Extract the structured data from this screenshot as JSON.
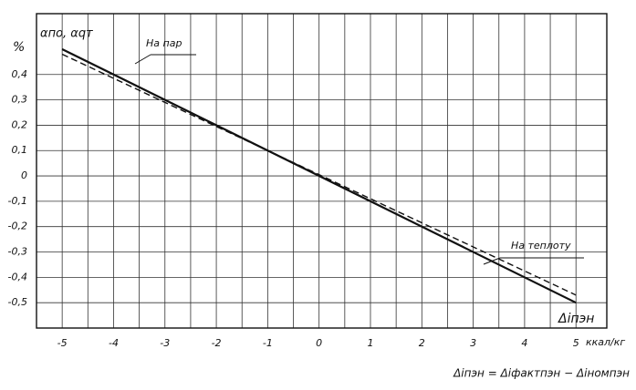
{
  "chart_data": {
    "type": "line",
    "y_label": "%",
    "y_symbol": "αпо, αqт",
    "x_label": "Δiпэн",
    "x_unit": "ккал/кг",
    "formula": "Δiпэн = Δiфактпэн − Δiномпэн",
    "x": [
      -5,
      5
    ],
    "series": [
      {
        "name": "На пар",
        "color": "#111111",
        "dash": "none",
        "values": [
          0.5,
          -0.5
        ]
      },
      {
        "name": "На теплоту",
        "color": "#111111",
        "dash": "7 4",
        "values": [
          0.48,
          -0.47
        ]
      }
    ],
    "xlim": [
      -5.5,
      5.6
    ],
    "ylim": [
      -0.6,
      0.64
    ],
    "xticks": [
      -5,
      -4,
      -3,
      -2,
      -1,
      0,
      1,
      2,
      3,
      4,
      5
    ],
    "yticks": [
      {
        "value": 0.4,
        "label": "0,4"
      },
      {
        "value": 0.3,
        "label": "0,3"
      },
      {
        "value": 0.2,
        "label": "0,2"
      },
      {
        "value": 0.1,
        "label": "0,1"
      },
      0,
      {
        "value": -0.1,
        "label": "-0,1"
      },
      {
        "value": -0.2,
        "label": "-0,2"
      },
      {
        "value": -0.3,
        "label": "-0,3"
      },
      {
        "value": -0.4,
        "label": "-0,4"
      },
      {
        "value": -0.5,
        "label": "-0,5"
      }
    ],
    "grid": true
  }
}
